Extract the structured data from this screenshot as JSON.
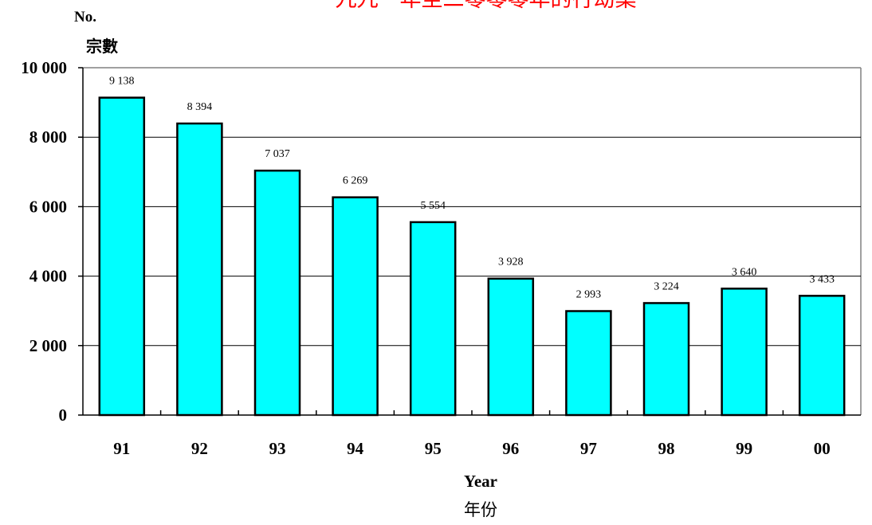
{
  "chart_data": {
    "type": "bar",
    "title": "一九九一年至二零零零年的行劫案",
    "ylabel_en": "No.",
    "ylabel_zh": "宗數",
    "xlabel_en": "Year",
    "xlabel_zh": "年份",
    "categories": [
      "91",
      "92",
      "93",
      "94",
      "95",
      "96",
      "97",
      "98",
      "99",
      "00"
    ],
    "values": [
      9138,
      8394,
      7037,
      6269,
      5554,
      3928,
      2993,
      3224,
      3640,
      3433
    ],
    "value_labels": [
      "9 138",
      "8 394",
      "7 037",
      "6 269",
      "5 554",
      "3 928",
      "2 993",
      "3 224",
      "3 640",
      "3 433"
    ],
    "ylim": [
      0,
      10000
    ],
    "yticks": [
      0,
      2000,
      4000,
      6000,
      8000,
      10000
    ],
    "ytick_labels": [
      "0",
      "2 000",
      "4 000",
      "6 000",
      "8 000",
      "10 000"
    ],
    "grid": true,
    "colors": {
      "bar_fill": "#00ffff",
      "bar_stroke": "#000000",
      "title": "#ff0000"
    }
  }
}
